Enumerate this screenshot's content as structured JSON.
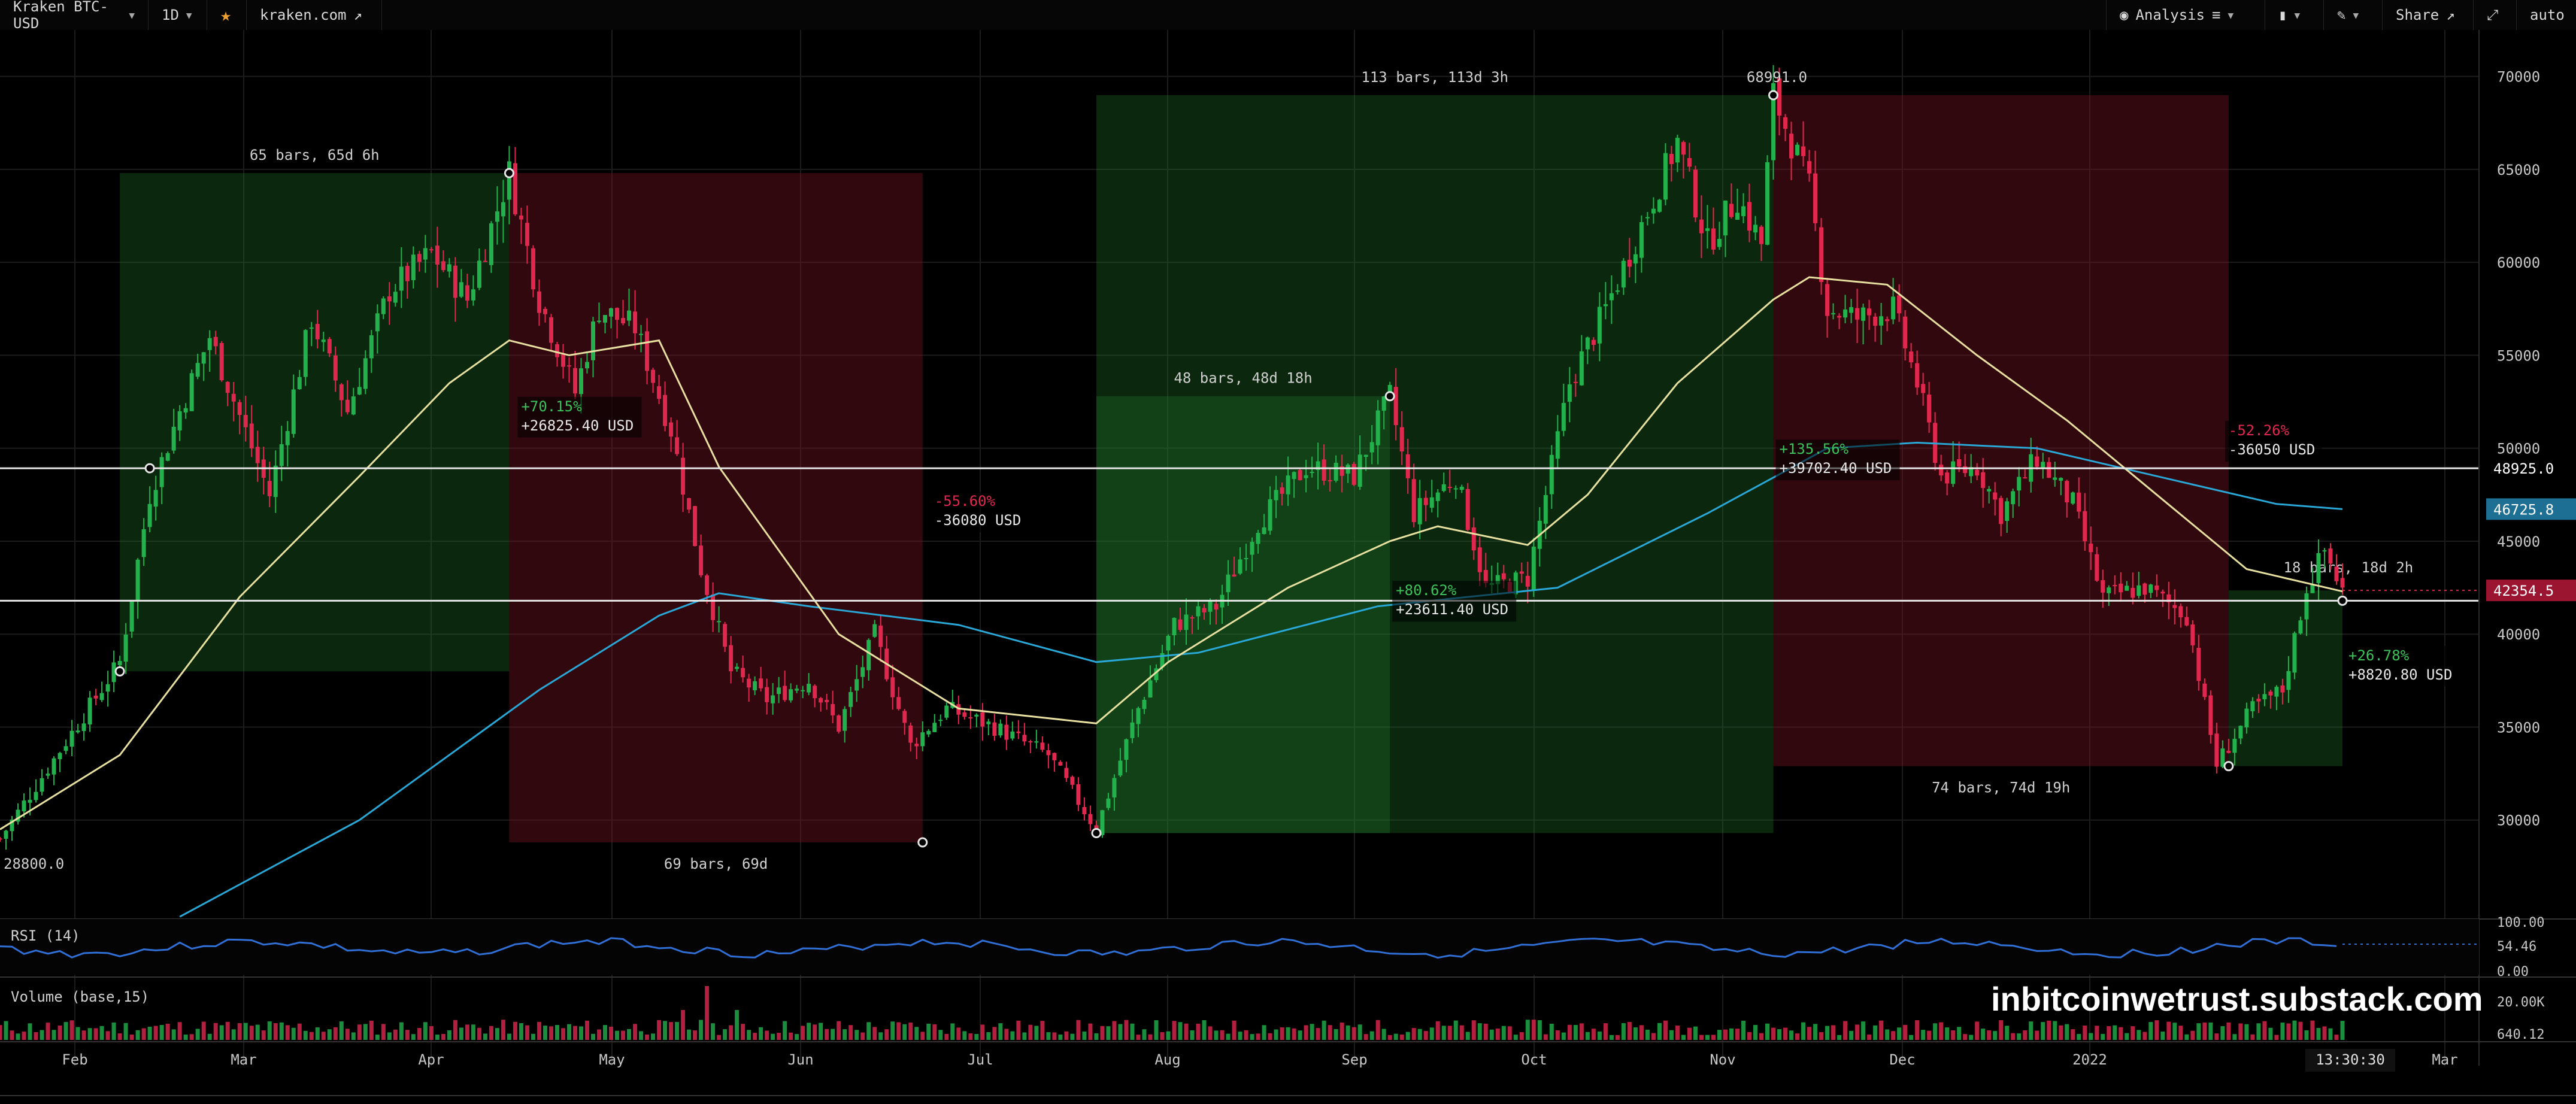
{
  "toolbar": {
    "symbol": "Kraken BTC-USD",
    "interval": "1D",
    "source": "kraken.com",
    "analysis": "Analysis",
    "share": "Share",
    "auto": "auto",
    "icons": [
      "star-icon",
      "external-link-icon",
      "eye-icon",
      "indicator-icon",
      "candles-icon",
      "pencil-icon",
      "expand-icon"
    ]
  },
  "watermark": "inbitcoinwetrust.substack.com",
  "chart_data": {
    "type": "candlestick",
    "price_axis": {
      "min": 25000,
      "max": 72500,
      "ticks": [
        30000,
        35000,
        40000,
        45000,
        50000,
        55000,
        60000,
        65000,
        70000
      ]
    },
    "time_axis": {
      "labels": [
        "Feb",
        "Mar",
        "Apr",
        "May",
        "Jun",
        "Jul",
        "Aug",
        "Sep",
        "Oct",
        "Nov",
        "Dec",
        "2022",
        "Mar"
      ],
      "current_time": "13:30:30"
    },
    "key_points": [
      {
        "t": 0,
        "v": 29000
      },
      {
        "t": 20,
        "v": 38500
      },
      {
        "t": 25,
        "v": 47500
      },
      {
        "t": 30,
        "v": 52000
      },
      {
        "t": 35,
        "v": 56000
      },
      {
        "t": 45,
        "v": 47500
      },
      {
        "t": 52,
        "v": 57000
      },
      {
        "t": 58,
        "v": 52000
      },
      {
        "t": 65,
        "v": 58500
      },
      {
        "t": 72,
        "v": 60500
      },
      {
        "t": 78,
        "v": 58000
      },
      {
        "t": 85,
        "v": 64800
      },
      {
        "t": 90,
        "v": 58000
      },
      {
        "t": 96,
        "v": 53000
      },
      {
        "t": 100,
        "v": 57500
      },
      {
        "t": 106,
        "v": 56500
      },
      {
        "t": 112,
        "v": 51000
      },
      {
        "t": 117,
        "v": 43500
      },
      {
        "t": 122,
        "v": 38000
      },
      {
        "t": 128,
        "v": 36500
      },
      {
        "t": 135,
        "v": 37500
      },
      {
        "t": 140,
        "v": 35000
      },
      {
        "t": 146,
        "v": 40000
      },
      {
        "t": 152,
        "v": 34000
      },
      {
        "t": 158,
        "v": 36000
      },
      {
        "t": 166,
        "v": 35000
      },
      {
        "t": 175,
        "v": 33500
      },
      {
        "t": 180,
        "v": 31000
      },
      {
        "t": 183,
        "v": 29500
      },
      {
        "t": 190,
        "v": 36000
      },
      {
        "t": 196,
        "v": 40500
      },
      {
        "t": 203,
        "v": 41500
      },
      {
        "t": 210,
        "v": 46000
      },
      {
        "t": 218,
        "v": 49000
      },
      {
        "t": 226,
        "v": 48500
      },
      {
        "t": 232,
        "v": 52800
      },
      {
        "t": 236,
        "v": 46500
      },
      {
        "t": 243,
        "v": 48500
      },
      {
        "t": 248,
        "v": 42500
      },
      {
        "t": 255,
        "v": 43000
      },
      {
        "t": 262,
        "v": 53500
      },
      {
        "t": 268,
        "v": 57500
      },
      {
        "t": 274,
        "v": 62000
      },
      {
        "t": 280,
        "v": 66500
      },
      {
        "t": 285,
        "v": 61000
      },
      {
        "t": 290,
        "v": 63500
      },
      {
        "t": 294,
        "v": 61000
      },
      {
        "t": 296,
        "v": 68991
      },
      {
        "t": 302,
        "v": 64000
      },
      {
        "t": 305,
        "v": 57500
      },
      {
        "t": 310,
        "v": 57000
      },
      {
        "t": 316,
        "v": 57500
      },
      {
        "t": 320,
        "v": 53500
      },
      {
        "t": 324,
        "v": 48500
      },
      {
        "t": 330,
        "v": 49000
      },
      {
        "t": 334,
        "v": 46500
      },
      {
        "t": 340,
        "v": 49500
      },
      {
        "t": 346,
        "v": 47000
      },
      {
        "t": 351,
        "v": 42000
      },
      {
        "t": 358,
        "v": 42500
      },
      {
        "t": 365,
        "v": 41000
      },
      {
        "t": 370,
        "v": 33000
      },
      {
        "t": 376,
        "v": 36000
      },
      {
        "t": 381,
        "v": 37000
      },
      {
        "t": 385,
        "v": 42500
      },
      {
        "t": 388,
        "v": 44500
      },
      {
        "t": 391,
        "v": 42354.5
      }
    ],
    "horizontal_lines": [
      48925.0,
      41800
    ],
    "price_badges": [
      {
        "value": "48925.0",
        "style": "plain"
      },
      {
        "value": "46725.8",
        "style": "blue"
      },
      {
        "value": "42354.5",
        "style": "red"
      }
    ],
    "ema_fast": [
      {
        "t": 0,
        "v": 29500
      },
      {
        "t": 20,
        "v": 33500
      },
      {
        "t": 40,
        "v": 42000
      },
      {
        "t": 60,
        "v": 48500
      },
      {
        "t": 75,
        "v": 53500
      },
      {
        "t": 85,
        "v": 55800
      },
      {
        "t": 95,
        "v": 55000
      },
      {
        "t": 110,
        "v": 55800
      },
      {
        "t": 120,
        "v": 49000
      },
      {
        "t": 140,
        "v": 40000
      },
      {
        "t": 160,
        "v": 36000
      },
      {
        "t": 183,
        "v": 35200
      },
      {
        "t": 195,
        "v": 38500
      },
      {
        "t": 215,
        "v": 42500
      },
      {
        "t": 232,
        "v": 45000
      },
      {
        "t": 240,
        "v": 45800
      },
      {
        "t": 255,
        "v": 44800
      },
      {
        "t": 265,
        "v": 47500
      },
      {
        "t": 280,
        "v": 53500
      },
      {
        "t": 296,
        "v": 58000
      },
      {
        "t": 302,
        "v": 59200
      },
      {
        "t": 315,
        "v": 58800
      },
      {
        "t": 330,
        "v": 55000
      },
      {
        "t": 345,
        "v": 51500
      },
      {
        "t": 360,
        "v": 47500
      },
      {
        "t": 375,
        "v": 43500
      },
      {
        "t": 391,
        "v": 42300
      }
    ],
    "ma_slow": [
      {
        "t": 30,
        "v": 24800
      },
      {
        "t": 60,
        "v": 30000
      },
      {
        "t": 90,
        "v": 37000
      },
      {
        "t": 110,
        "v": 41000
      },
      {
        "t": 120,
        "v": 42200
      },
      {
        "t": 135,
        "v": 41500
      },
      {
        "t": 160,
        "v": 40500
      },
      {
        "t": 183,
        "v": 38500
      },
      {
        "t": 200,
        "v": 39000
      },
      {
        "t": 230,
        "v": 41500
      },
      {
        "t": 260,
        "v": 42500
      },
      {
        "t": 285,
        "v": 46500
      },
      {
        "t": 305,
        "v": 50000
      },
      {
        "t": 320,
        "v": 50300
      },
      {
        "t": 340,
        "v": 50000
      },
      {
        "t": 360,
        "v": 48500
      },
      {
        "t": 380,
        "v": 47000
      },
      {
        "t": 391,
        "v": 46725.8
      }
    ],
    "ranges": [
      {
        "t1": 20,
        "t2": 85,
        "v1": 38000,
        "v2": 64800,
        "color": "green",
        "label": "65 bars, 65d 6h",
        "label_pos": "top"
      },
      {
        "t1": 85,
        "t2": 154,
        "v1": 28800,
        "v2": 64800,
        "color": "red",
        "label": "69 bars, 69d",
        "label_pos": "bottom"
      },
      {
        "t1": 183,
        "t2": 296,
        "v1": 29300,
        "v2": 68991,
        "color": "green",
        "label": "113 bars, 113d 3h",
        "label_pos": "top"
      },
      {
        "t1": 183,
        "t2": 232,
        "v1": 29300,
        "v2": 52800,
        "color": "green",
        "label": "48 bars, 48d 18h",
        "label_pos": "top"
      },
      {
        "t1": 296,
        "t2": 372,
        "v1": 32900,
        "v2": 68991,
        "color": "red",
        "label": "74 bars, 74d 19h",
        "label_pos": "bottom"
      },
      {
        "t1": 372,
        "t2": 391,
        "v1": 32900,
        "v2": 42354,
        "color": "green",
        "label": "18 bars, 18d 2h",
        "label_pos": "inside"
      }
    ],
    "measure_labels": [
      {
        "t": 87,
        "v": 51800,
        "pct": "+70.15%",
        "usd": "+26825.40 USD",
        "color": "green"
      },
      {
        "t": 156,
        "v": 46700,
        "pct": "-55.60%",
        "usd": "-36080 USD",
        "color": "red"
      },
      {
        "t": 233,
        "v": 41900,
        "pct": "+80.62%",
        "usd": "+23611.40 USD",
        "color": "green"
      },
      {
        "t": 297,
        "v": 49500,
        "pct": "+135.56%",
        "usd": "+39702.40 USD",
        "color": "green"
      },
      {
        "t": 372,
        "v": 50500,
        "pct": "-52.26%",
        "usd": "-36050 USD",
        "color": "red"
      },
      {
        "t": 392,
        "v": 38400,
        "pct": "+26.78%",
        "usd": "+8820.80 USD",
        "color": "green"
      }
    ],
    "point_labels": [
      {
        "t": 296,
        "v": 68991,
        "text": "68991.0",
        "pos": "above"
      },
      {
        "t": 0,
        "v": 28800,
        "text": "28800.0",
        "pos": "below"
      }
    ],
    "markers": [
      {
        "t": 20,
        "v": 38000
      },
      {
        "t": 25,
        "v": 48925
      },
      {
        "t": 85,
        "v": 64800
      },
      {
        "t": 154,
        "v": 28800
      },
      {
        "t": 183,
        "v": 29300
      },
      {
        "t": 232,
        "v": 52800
      },
      {
        "t": 296,
        "v": 68991
      },
      {
        "t": 372,
        "v": 32900
      },
      {
        "t": 391,
        "v": 41800
      }
    ],
    "rsi": {
      "label": "RSI (14)",
      "ticks": [
        "100.00",
        "54.46",
        "0.00"
      ]
    },
    "volume": {
      "label": "Volume (base,15)",
      "ticks": [
        "20.00K",
        "640.12"
      ]
    },
    "colors": {
      "up": "#22b14c",
      "down": "#e0284f",
      "ema": "#e8e0a0",
      "ma": "#29a8d8",
      "rsi": "#2f6fd6"
    }
  }
}
